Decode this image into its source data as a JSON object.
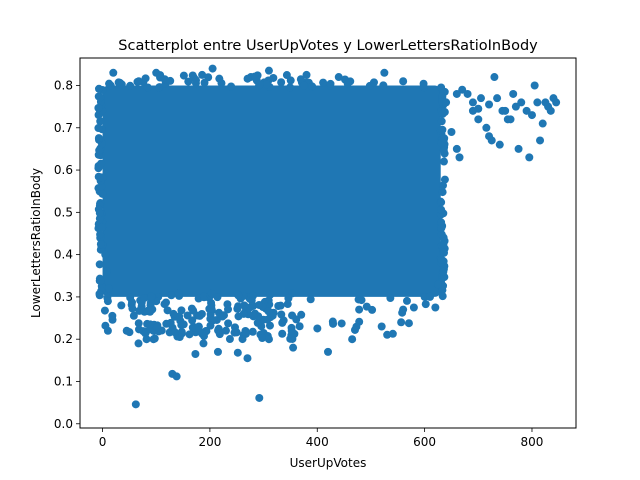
{
  "chart_data": {
    "type": "scatter",
    "title": "Scatterplot entre UserUpVotes y LowerLettersRatioInBody",
    "xlabel": "UserUpVotes",
    "ylabel": "LowerLettersRatioInBody",
    "xlim": [
      -42,
      882
    ],
    "ylim": [
      -0.01,
      0.865
    ],
    "x_ticks": [
      {
        "value": 0,
        "label": "0"
      },
      {
        "value": 200,
        "label": "200"
      },
      {
        "value": 400,
        "label": "400"
      },
      {
        "value": 600,
        "label": "600"
      },
      {
        "value": 800,
        "label": "800"
      }
    ],
    "y_ticks": [
      {
        "value": 0.0,
        "label": "0.0"
      },
      {
        "value": 0.1,
        "label": "0.1"
      },
      {
        "value": 0.2,
        "label": "0.2"
      },
      {
        "value": 0.3,
        "label": "0.3"
      },
      {
        "value": 0.4,
        "label": "0.4"
      },
      {
        "value": 0.5,
        "label": "0.5"
      },
      {
        "value": 0.6,
        "label": "0.6"
      },
      {
        "value": 0.7,
        "label": "0.7"
      },
      {
        "value": 0.8,
        "label": "0.8"
      }
    ],
    "grid": false,
    "marker_color": "#1f77b4",
    "dense_region": {
      "x": [
        0,
        630
      ],
      "y": [
        0.3,
        0.8
      ]
    },
    "points": [
      [
        62,
        0.046
      ],
      [
        292,
        0.061
      ],
      [
        130,
        0.118
      ],
      [
        138,
        0.112
      ],
      [
        10,
        0.22
      ],
      [
        173,
        0.165
      ],
      [
        270,
        0.155
      ],
      [
        188,
        0.19
      ],
      [
        252,
        0.168
      ],
      [
        180,
        0.22
      ],
      [
        215,
        0.17
      ],
      [
        82,
        0.2
      ],
      [
        95,
        0.2
      ],
      [
        67,
        0.19
      ],
      [
        355,
        0.18
      ],
      [
        420,
        0.17
      ],
      [
        465,
        0.2
      ],
      [
        310,
        0.2
      ],
      [
        520,
        0.23
      ],
      [
        478,
        0.27
      ],
      [
        560,
        0.27
      ],
      [
        580,
        0.275
      ],
      [
        620,
        0.275
      ],
      [
        10,
        0.29
      ],
      [
        8,
        0.36
      ],
      [
        12,
        0.32
      ],
      [
        5,
        0.4
      ],
      [
        35,
        0.28
      ],
      [
        45,
        0.22
      ],
      [
        600,
        0.3
      ],
      [
        610,
        0.3
      ],
      [
        625,
        0.33
      ],
      [
        640,
        0.76
      ],
      [
        650,
        0.69
      ],
      [
        660,
        0.65
      ],
      [
        665,
        0.63
      ],
      [
        670,
        0.79
      ],
      [
        680,
        0.78
      ],
      [
        690,
        0.74
      ],
      [
        700,
        0.72
      ],
      [
        705,
        0.77
      ],
      [
        715,
        0.7
      ],
      [
        720,
        0.68
      ],
      [
        725,
        0.67
      ],
      [
        730,
        0.82
      ],
      [
        735,
        0.77
      ],
      [
        740,
        0.66
      ],
      [
        750,
        0.74
      ],
      [
        755,
        0.72
      ],
      [
        760,
        0.72
      ],
      [
        765,
        0.78
      ],
      [
        775,
        0.65
      ],
      [
        780,
        0.76
      ],
      [
        790,
        0.74
      ],
      [
        795,
        0.63
      ],
      [
        800,
        0.73
      ],
      [
        805,
        0.8
      ],
      [
        815,
        0.67
      ],
      [
        820,
        0.71
      ],
      [
        825,
        0.76
      ],
      [
        830,
        0.75
      ],
      [
        835,
        0.74
      ],
      [
        840,
        0.77
      ],
      [
        845,
        0.76
      ],
      [
        810,
        0.76
      ],
      [
        205,
        0.84
      ],
      [
        310,
        0.835
      ],
      [
        525,
        0.83
      ],
      [
        20,
        0.83
      ],
      [
        100,
        0.83
      ],
      [
        380,
        0.825
      ],
      [
        440,
        0.82
      ],
      [
        560,
        0.81
      ],
      [
        660,
        0.78
      ],
      [
        690,
        0.76
      ],
      [
        700,
        0.745
      ],
      [
        720,
        0.755
      ],
      [
        745,
        0.74
      ],
      [
        770,
        0.75
      ]
    ]
  }
}
